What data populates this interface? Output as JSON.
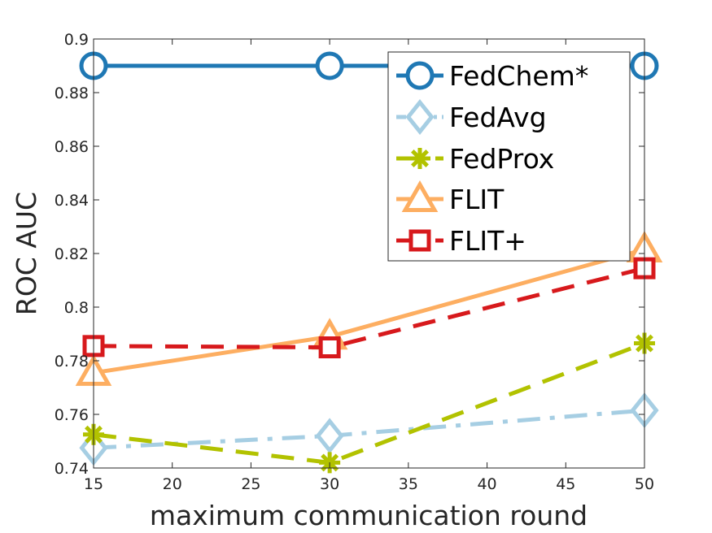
{
  "chart_data": {
    "type": "line",
    "xlabel": "maximum communication round",
    "ylabel": "ROC AUC",
    "xlim": [
      15,
      50
    ],
    "ylim": [
      0.74,
      0.9
    ],
    "xticks": [
      "15",
      "20",
      "25",
      "30",
      "35",
      "40",
      "45",
      "50"
    ],
    "yticks": [
      "0.74",
      "0.76",
      "0.78",
      "0.8",
      "0.82",
      "0.84",
      "0.86",
      "0.88",
      "0.9"
    ],
    "grid": false,
    "legend_position": "top-right",
    "x": [
      15,
      30,
      50
    ],
    "series": [
      {
        "name": "FedChem*",
        "values": [
          0.89,
          0.89,
          0.89
        ],
        "color": "#1f78b4",
        "marker": "circle",
        "line_style": "solid"
      },
      {
        "name": "FedAvg",
        "values": [
          0.7475,
          0.752,
          0.7615
        ],
        "color": "#a6cee3",
        "marker": "diamond",
        "line_style": "dashdot"
      },
      {
        "name": "FedProx",
        "values": [
          0.7525,
          0.742,
          0.7865
        ],
        "color": "#b2c200",
        "marker": "asterisk",
        "line_style": "dashed"
      },
      {
        "name": "FLIT",
        "values": [
          0.7755,
          0.789,
          0.8215
        ],
        "color": "#fdae61",
        "marker": "triangle",
        "line_style": "solid"
      },
      {
        "name": "FLIT+",
        "values": [
          0.7855,
          0.785,
          0.8145
        ],
        "color": "#d7191c",
        "marker": "square",
        "line_style": "dashed"
      }
    ]
  }
}
